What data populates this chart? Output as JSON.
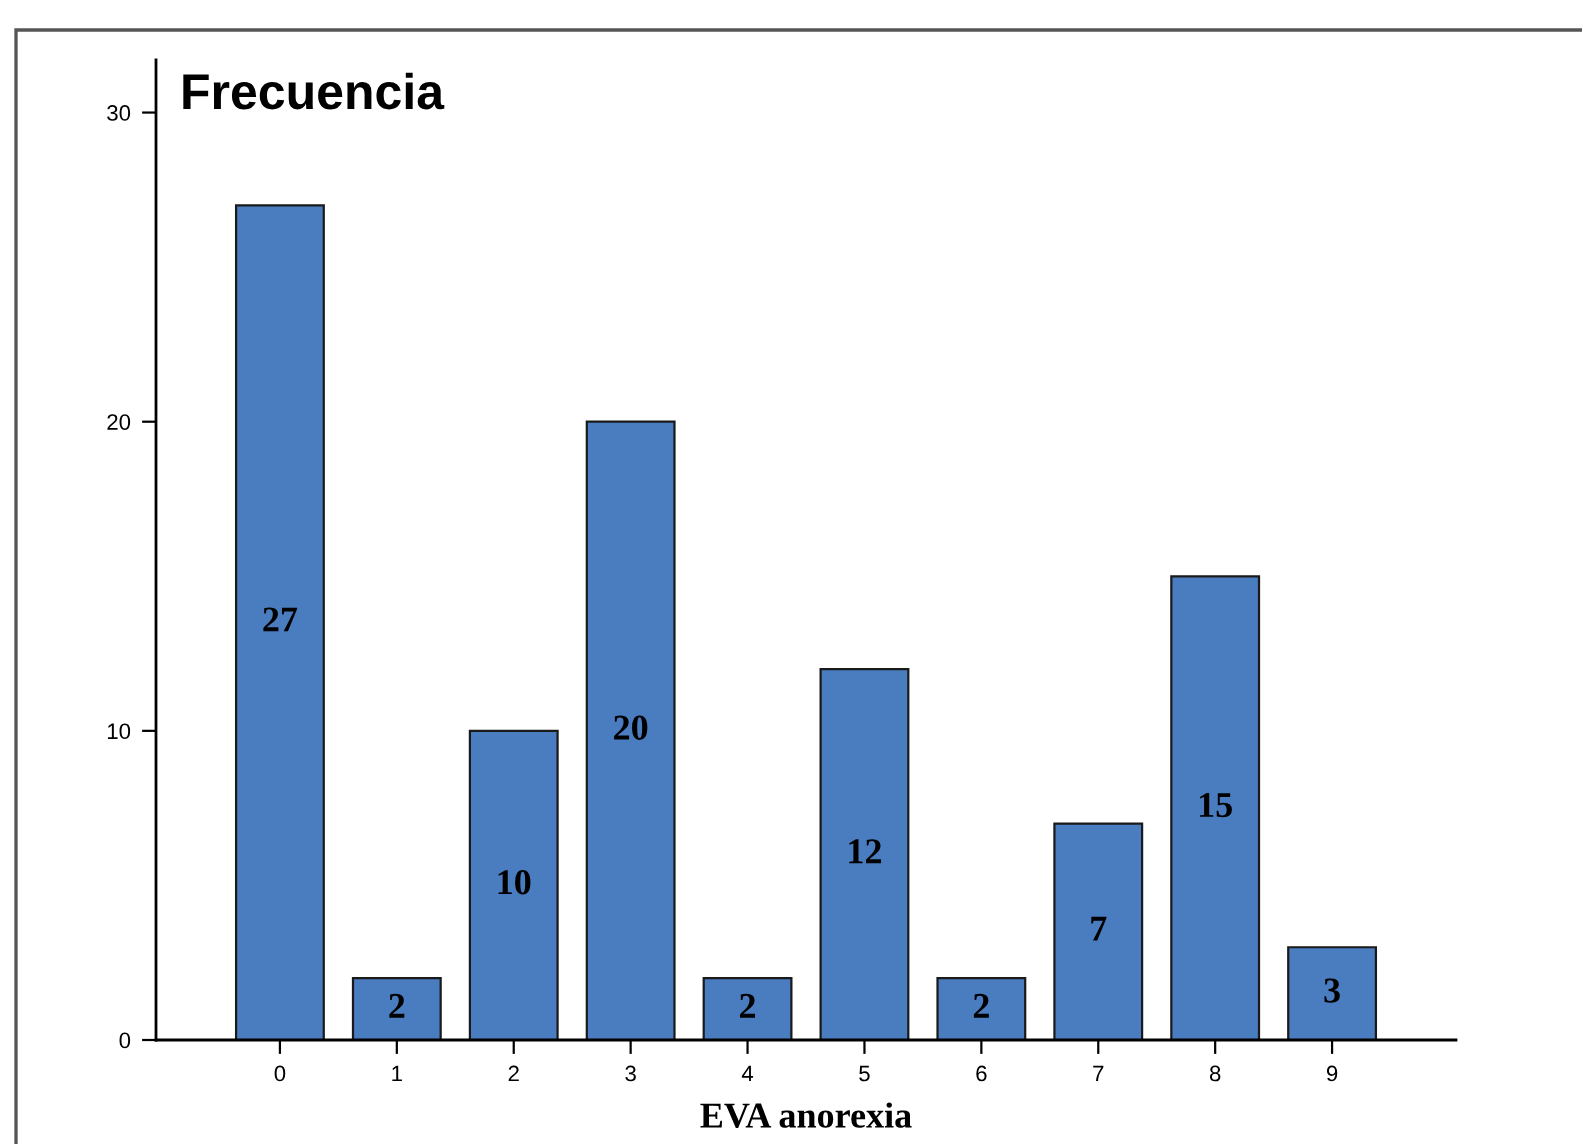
{
  "chart_data": {
    "type": "bar",
    "ylabel": "Frecuencia",
    "xlabel": "EVA anorexia",
    "categories": [
      "0",
      "1",
      "2",
      "3",
      "4",
      "5",
      "6",
      "7",
      "8",
      "9"
    ],
    "values": [
      27,
      2,
      10,
      20,
      2,
      12,
      2,
      7,
      15,
      3
    ],
    "color": "#4a7cc0",
    "ylim": [
      0,
      31.7
    ],
    "yticks": [
      0,
      10,
      20,
      30
    ],
    "data_labels": true,
    "grid": false,
    "legend": false
  }
}
